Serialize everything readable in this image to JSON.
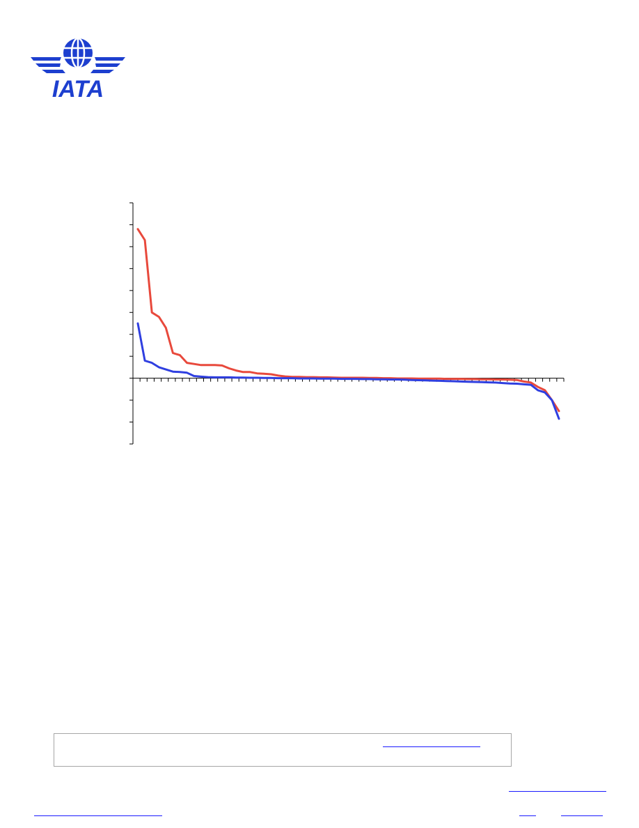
{
  "logo": {
    "text": "IATA",
    "icon": "globe-wings-icon",
    "color": "#1d3fcf"
  },
  "chart_data": {
    "type": "line",
    "title": "",
    "xlabel": "",
    "ylabel": "",
    "grid": false,
    "legend": "none",
    "categories_count": 61,
    "series": [
      {
        "color": "#e8493c",
        "values": [
          6.8,
          6.3,
          3.0,
          2.8,
          2.3,
          1.15,
          1.05,
          0.7,
          0.65,
          0.6,
          0.6,
          0.6,
          0.58,
          0.45,
          0.35,
          0.28,
          0.28,
          0.22,
          0.2,
          0.18,
          0.12,
          0.08,
          0.06,
          0.06,
          0.05,
          0.05,
          0.04,
          0.04,
          0.03,
          0.02,
          0.02,
          0.02,
          0.02,
          0.01,
          0.01,
          0.0,
          0.0,
          -0.01,
          -0.01,
          -0.01,
          -0.02,
          -0.02,
          -0.02,
          -0.02,
          -0.03,
          -0.03,
          -0.03,
          -0.04,
          -0.04,
          -0.05,
          -0.05,
          -0.06,
          -0.06,
          -0.07,
          -0.08,
          -0.15,
          -0.2,
          -0.4,
          -0.55,
          -1.0,
          -1.5
        ]
      },
      {
        "color": "#2f3fe0",
        "values": [
          2.5,
          0.8,
          0.7,
          0.5,
          0.4,
          0.3,
          0.28,
          0.25,
          0.1,
          0.07,
          0.05,
          0.04,
          0.04,
          0.04,
          0.03,
          0.03,
          0.02,
          0.02,
          0.01,
          0.01,
          0.0,
          0.0,
          0.0,
          -0.01,
          -0.01,
          -0.01,
          -0.02,
          -0.02,
          -0.02,
          -0.03,
          -0.03,
          -0.03,
          -0.04,
          -0.04,
          -0.05,
          -0.05,
          -0.06,
          -0.06,
          -0.07,
          -0.08,
          -0.09,
          -0.1,
          -0.11,
          -0.12,
          -0.13,
          -0.14,
          -0.15,
          -0.16,
          -0.17,
          -0.18,
          -0.19,
          -0.2,
          -0.22,
          -0.24,
          -0.25,
          -0.28,
          -0.3,
          -0.55,
          -0.65,
          -1.0,
          -1.85
        ]
      }
    ],
    "ylim": [
      -3,
      8
    ]
  }
}
